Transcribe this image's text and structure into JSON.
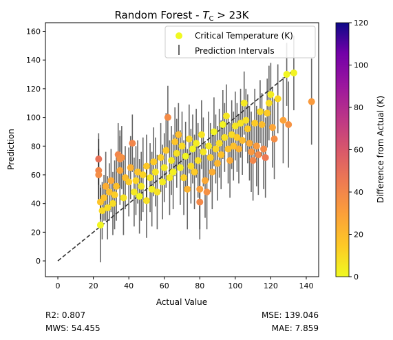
{
  "chart_data": {
    "type": "scatter",
    "title_main": "Random Forest - ",
    "title_sym": "T",
    "title_sub": "C",
    "title_tail": " > 23K",
    "xlabel": "Actual Value",
    "ylabel": "Prediction",
    "xlim": [
      -7,
      147
    ],
    "ylim": [
      -11,
      166
    ],
    "xticks": [
      0,
      20,
      40,
      60,
      80,
      100,
      120,
      140
    ],
    "yticks": [
      0,
      20,
      40,
      60,
      80,
      100,
      120,
      140,
      160
    ],
    "legend": {
      "placement": "upper-right",
      "entries": [
        "Critical Temperature (K)",
        "Prediction Intervals"
      ]
    },
    "colorbar": {
      "label": "Difference from Actual (K)",
      "range": [
        0,
        120
      ],
      "ticks": [
        0,
        20,
        40,
        60,
        80,
        100,
        120
      ],
      "colormap": "plasma_r"
    },
    "reference_line": {
      "from": [
        0,
        0
      ],
      "to": [
        133,
        133
      ],
      "style": "dashed"
    },
    "metrics": {
      "r2": "R2: 0.807",
      "mws": "MWS: 54.455",
      "mse": "MSE: 139.046",
      "mae": "MAE: 7.859"
    },
    "points": [
      [
        23,
        71,
        18
      ],
      [
        23,
        63,
        22
      ],
      [
        23,
        60,
        18
      ],
      [
        24,
        41,
        12
      ],
      [
        24,
        25,
        26
      ],
      [
        25,
        35,
        20
      ],
      [
        26,
        44,
        16
      ],
      [
        27,
        52,
        24
      ],
      [
        28,
        37,
        22
      ],
      [
        29,
        48,
        20
      ],
      [
        30,
        56,
        22
      ],
      [
        31,
        40,
        22
      ],
      [
        32,
        46,
        24
      ],
      [
        33,
        52,
        24
      ],
      [
        34,
        74,
        22
      ],
      [
        35,
        71,
        20
      ],
      [
        35,
        63,
        24
      ],
      [
        36,
        72,
        22
      ],
      [
        37,
        44,
        26
      ],
      [
        38,
        58,
        22
      ],
      [
        40,
        55,
        24
      ],
      [
        41,
        65,
        22
      ],
      [
        42,
        82,
        20
      ],
      [
        43,
        48,
        24
      ],
      [
        44,
        56,
        24
      ],
      [
        45,
        62,
        22
      ],
      [
        46,
        45,
        26
      ],
      [
        47,
        52,
        24
      ],
      [
        48,
        60,
        26
      ],
      [
        50,
        42,
        26
      ],
      [
        50,
        66,
        22
      ],
      [
        52,
        58,
        24
      ],
      [
        53,
        50,
        26
      ],
      [
        54,
        69,
        24
      ],
      [
        55,
        62,
        24
      ],
      [
        56,
        48,
        26
      ],
      [
        58,
        72,
        24
      ],
      [
        59,
        55,
        26
      ],
      [
        60,
        65,
        24
      ],
      [
        61,
        77,
        26
      ],
      [
        62,
        100,
        22
      ],
      [
        63,
        58,
        26
      ],
      [
        64,
        70,
        24
      ],
      [
        65,
        62,
        26
      ],
      [
        66,
        83,
        24
      ],
      [
        67,
        75,
        24
      ],
      [
        68,
        88,
        22
      ],
      [
        69,
        65,
        26
      ],
      [
        70,
        80,
        24
      ],
      [
        71,
        58,
        26
      ],
      [
        72,
        73,
        24
      ],
      [
        73,
        50,
        28
      ],
      [
        74,
        85,
        24
      ],
      [
        75,
        66,
        26
      ],
      [
        76,
        78,
        24
      ],
      [
        77,
        62,
        26
      ],
      [
        78,
        82,
        24
      ],
      [
        79,
        70,
        26
      ],
      [
        80,
        50,
        28
      ],
      [
        80,
        41,
        26
      ],
      [
        81,
        88,
        24
      ],
      [
        82,
        76,
        24
      ],
      [
        83,
        56,
        26
      ],
      [
        84,
        48,
        26
      ],
      [
        85,
        80,
        24
      ],
      [
        86,
        72,
        24
      ],
      [
        87,
        62,
        26
      ],
      [
        88,
        90,
        24
      ],
      [
        89,
        78,
        24
      ],
      [
        90,
        68,
        26
      ],
      [
        91,
        82,
        24
      ],
      [
        92,
        74,
        24
      ],
      [
        93,
        95,
        24
      ],
      [
        94,
        86,
        24
      ],
      [
        95,
        101,
        22
      ],
      [
        96,
        78,
        24
      ],
      [
        97,
        70,
        26
      ],
      [
        98,
        88,
        24
      ],
      [
        99,
        80,
        24
      ],
      [
        100,
        94,
        24
      ],
      [
        101,
        86,
        24
      ],
      [
        102,
        78,
        24
      ],
      [
        103,
        96,
        24
      ],
      [
        104,
        84,
        24
      ],
      [
        105,
        110,
        22
      ],
      [
        106,
        98,
        22
      ],
      [
        107,
        92,
        24
      ],
      [
        108,
        82,
        26
      ],
      [
        109,
        76,
        28
      ],
      [
        110,
        70,
        28
      ],
      [
        111,
        96,
        24
      ],
      [
        112,
        80,
        28
      ],
      [
        113,
        74,
        28
      ],
      [
        114,
        104,
        22
      ],
      [
        115,
        95,
        22
      ],
      [
        116,
        78,
        28
      ],
      [
        117,
        72,
        28
      ],
      [
        118,
        103,
        24
      ],
      [
        119,
        110,
        26
      ],
      [
        120,
        116,
        22
      ],
      [
        121,
        93,
        28
      ],
      [
        122,
        85,
        28
      ],
      [
        124,
        113,
        24
      ],
      [
        127,
        98,
        30
      ],
      [
        129,
        130,
        22
      ],
      [
        130,
        95,
        30
      ],
      [
        133,
        131,
        26
      ],
      [
        143,
        111,
        30
      ]
    ]
  }
}
